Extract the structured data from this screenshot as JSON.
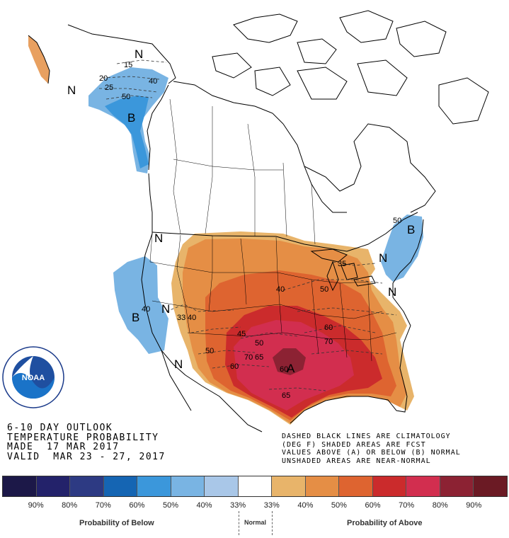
{
  "outlook": {
    "line1": "6-10 DAY OUTLOOK",
    "line2": "TEMPERATURE PROBABILITY",
    "line3": "MADE  17 MAR 2017",
    "line4": "VALID  MAR 23 - 27, 2017"
  },
  "legend_note": {
    "line1": "DASHED BLACK LINES ARE CLIMATOLOGY",
    "line2": "(DEG F) SHADED AREAS ARE FCST",
    "line3": "VALUES ABOVE (A) OR BELOW (B) NORMAL",
    "line4": "UNSHADED AREAS ARE NEAR-NORMAL"
  },
  "logo": {
    "text": "NOAA",
    "ring_text": "NATIONAL OCEANIC AND ATMOSPHERIC ADMINISTRATION · U.S. DEPARTMENT OF COMMERCE"
  },
  "map_labels": {
    "n_alaska": "N",
    "n_ak_sw": "N",
    "b_alaska": "B",
    "n_nw": "N",
    "b_west": "B",
    "n_west": "N",
    "n_sw": "N",
    "b_ne": "B",
    "n_ne": "N",
    "a_south": "A",
    "n_gl": "N",
    "n_atl": "N"
  },
  "contours": {
    "c15": "15",
    "c20": "20",
    "c25": "25",
    "c40ak": "40",
    "c50ak": "50",
    "c40w": "40",
    "c33w": "33",
    "c40sw": "40",
    "c50sw": "50",
    "c60sw": "60",
    "c45": "45",
    "c50tx": "50",
    "c70": "70",
    "c65": "65",
    "c60tx": "60",
    "c35": "35",
    "c40mw": "40",
    "c50mw": "50",
    "c60se": "60",
    "c70se": "70",
    "c60ne": "50",
    "c65gulf": "65"
  },
  "colorbar": {
    "colors": [
      "#1c1848",
      "#23226a",
      "#2d3a83",
      "#1565b3",
      "#3b97db",
      "#79b4e3",
      "#a9c7e8",
      "#ffffff",
      "#e8b46a",
      "#e58e45",
      "#de6430",
      "#cb2b2c",
      "#d22e4f",
      "#8c2233",
      "#6b1a24"
    ],
    "ticks": [
      "90%",
      "80%",
      "70%",
      "60%",
      "50%",
      "40%",
      "33%",
      "33%",
      "40%",
      "50%",
      "60%",
      "70%",
      "80%",
      "90%"
    ]
  },
  "captions": {
    "below": "Probability of Below",
    "normal": "Normal",
    "above": "Probability of Above"
  }
}
